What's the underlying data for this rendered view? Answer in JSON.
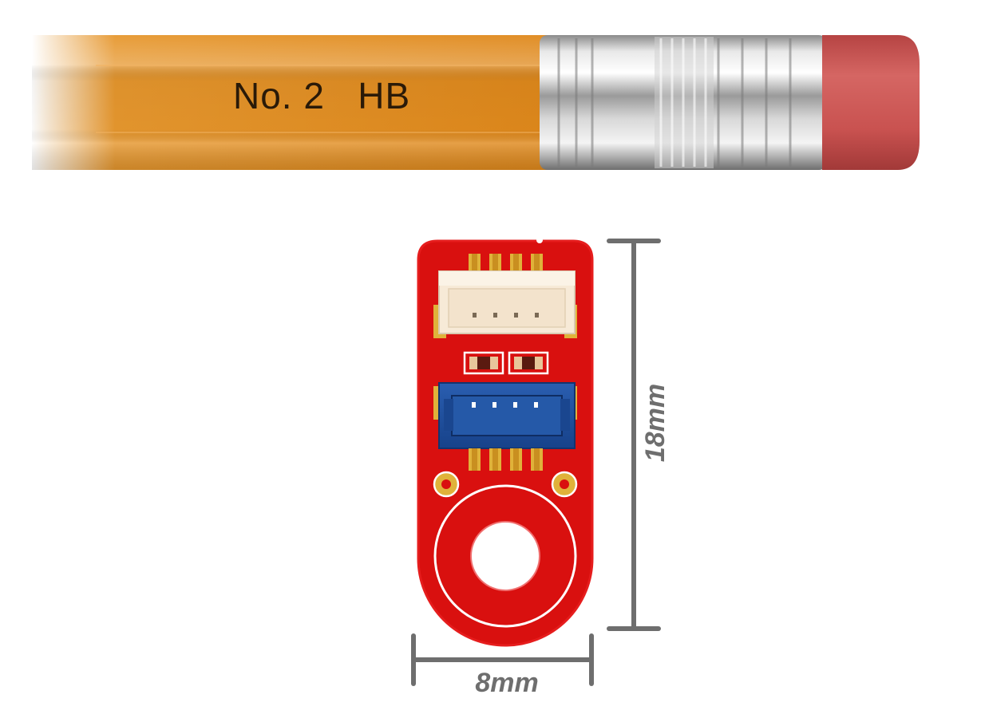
{
  "pencil": {
    "imprint": "No. 2   HB"
  },
  "dimensions": {
    "width_label": "8mm",
    "height_label": "18mm"
  },
  "colors": {
    "pcb_red": "#d9100f",
    "pcb_edge": "#e61d1d",
    "connector_white": "#f7ead7",
    "connector_blue": "#1d4d9a",
    "pad_gold": "#e0b23a",
    "dimension_gray": "#6e6e6e",
    "pencil_wood": "#e08a1c",
    "eraser_pink": "#c84f4d"
  }
}
